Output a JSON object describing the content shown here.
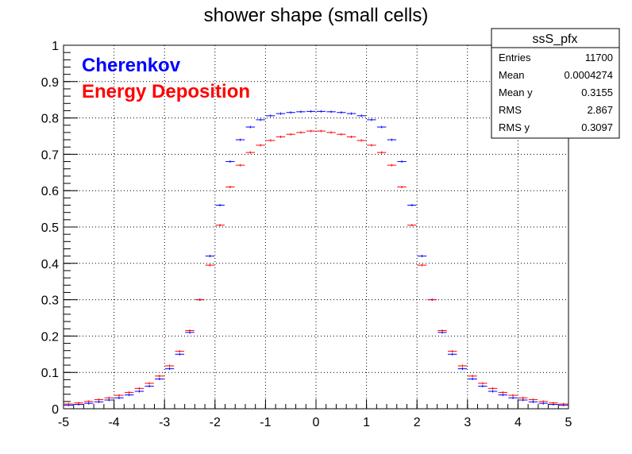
{
  "chart_data": {
    "type": "scatter",
    "title": "shower shape (small cells)",
    "xlabel": "",
    "ylabel": "",
    "xlim": [
      -5,
      5
    ],
    "ylim": [
      0,
      1
    ],
    "x_ticks": [
      "-5",
      "-4",
      "-3",
      "-2",
      "-1",
      "0",
      "1",
      "2",
      "3",
      "4",
      "5"
    ],
    "y_ticks": [
      "0",
      "0.1",
      "0.2",
      "0.3",
      "0.4",
      "0.5",
      "0.6",
      "0.7",
      "0.8",
      "0.9",
      "1"
    ],
    "grid": true,
    "legend_position": "top-left",
    "series": [
      {
        "name": "Cherenkov",
        "color": "#0000ff",
        "x": [
          -4.9,
          -4.7,
          -4.5,
          -4.3,
          -4.1,
          -3.9,
          -3.7,
          -3.5,
          -3.3,
          -3.1,
          -2.9,
          -2.7,
          -2.5,
          -2.3,
          -2.1,
          -1.9,
          -1.7,
          -1.5,
          -1.3,
          -1.1,
          -0.9,
          -0.7,
          -0.5,
          -0.3,
          -0.1,
          0.1,
          0.3,
          0.5,
          0.7,
          0.9,
          1.1,
          1.3,
          1.5,
          1.7,
          1.9,
          2.1,
          2.3,
          2.5,
          2.7,
          2.9,
          3.1,
          3.3,
          3.5,
          3.7,
          3.9,
          4.1,
          4.3,
          4.5,
          4.7,
          4.9
        ],
        "y": [
          0.01,
          0.012,
          0.015,
          0.019,
          0.024,
          0.03,
          0.038,
          0.048,
          0.062,
          0.082,
          0.11,
          0.15,
          0.21,
          0.3,
          0.42,
          0.56,
          0.68,
          0.74,
          0.775,
          0.795,
          0.806,
          0.812,
          0.815,
          0.817,
          0.818,
          0.818,
          0.817,
          0.815,
          0.812,
          0.806,
          0.795,
          0.775,
          0.74,
          0.68,
          0.56,
          0.42,
          0.3,
          0.21,
          0.15,
          0.11,
          0.082,
          0.062,
          0.048,
          0.038,
          0.03,
          0.024,
          0.019,
          0.015,
          0.012,
          0.01
        ]
      },
      {
        "name": "Energy Deposition",
        "color": "#ff0000",
        "x": [
          -4.9,
          -4.7,
          -4.5,
          -4.3,
          -4.1,
          -3.9,
          -3.7,
          -3.5,
          -3.3,
          -3.1,
          -2.9,
          -2.7,
          -2.5,
          -2.3,
          -2.1,
          -1.9,
          -1.7,
          -1.5,
          -1.3,
          -1.1,
          -0.9,
          -0.7,
          -0.5,
          -0.3,
          -0.1,
          0.1,
          0.3,
          0.5,
          0.7,
          0.9,
          1.1,
          1.3,
          1.5,
          1.7,
          1.9,
          2.1,
          2.3,
          2.5,
          2.7,
          2.9,
          3.1,
          3.3,
          3.5,
          3.7,
          3.9,
          4.1,
          4.3,
          4.5,
          4.7,
          4.9
        ],
        "y": [
          0.013,
          0.016,
          0.02,
          0.025,
          0.03,
          0.037,
          0.045,
          0.056,
          0.07,
          0.09,
          0.118,
          0.158,
          0.215,
          0.3,
          0.395,
          0.505,
          0.61,
          0.67,
          0.705,
          0.725,
          0.738,
          0.748,
          0.755,
          0.76,
          0.764,
          0.764,
          0.76,
          0.755,
          0.748,
          0.738,
          0.725,
          0.705,
          0.67,
          0.61,
          0.505,
          0.395,
          0.3,
          0.215,
          0.158,
          0.118,
          0.09,
          0.07,
          0.056,
          0.045,
          0.037,
          0.03,
          0.025,
          0.02,
          0.016,
          0.013
        ]
      }
    ],
    "stats_box": {
      "title": "ssS_pfx",
      "rows": [
        {
          "label": "Entries",
          "value": "11700"
        },
        {
          "label": "Mean",
          "value": "0.0004274"
        },
        {
          "label": "Mean y",
          "value": "0.3155"
        },
        {
          "label": "RMS",
          "value": "2.867"
        },
        {
          "label": "RMS y",
          "value": "0.3097"
        }
      ]
    }
  }
}
